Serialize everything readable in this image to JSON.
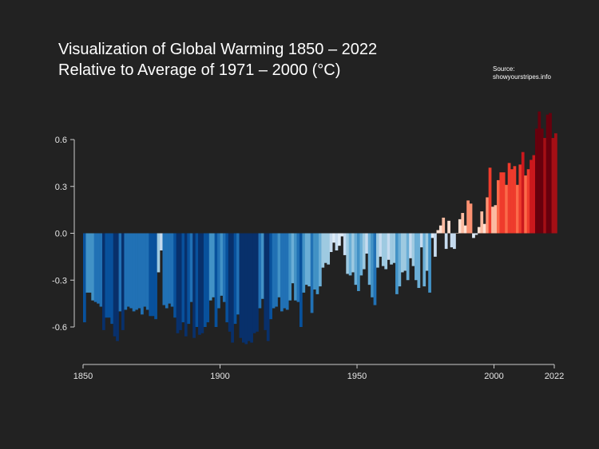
{
  "chart_data": {
    "type": "bar",
    "title": "Visualization of Global Warming 1850 – 2022",
    "subtitle": "Relative to Average of 1971 – 2000 (°C)",
    "source_label": "Source:",
    "source_value": "showyourstripes.info",
    "xlabel": "",
    "ylabel": "",
    "xlim": [
      1850,
      2022
    ],
    "ylim": [
      -0.6,
      0.6
    ],
    "x_ticks": [
      1850,
      1900,
      1950,
      2000,
      2022
    ],
    "x_tick_labels": [
      "1850",
      "1900",
      "1950",
      "2000",
      "2022"
    ],
    "y_ticks": [
      0.6,
      0.3,
      0.0,
      -0.3,
      -0.6
    ],
    "y_tick_labels": [
      "0.6",
      "0.3",
      "0.0",
      "-0.3",
      "-0.6"
    ],
    "grid": false,
    "legend": "none",
    "start_year": 1850,
    "values": [
      -0.57,
      -0.38,
      -0.38,
      -0.43,
      -0.44,
      -0.45,
      -0.47,
      -0.62,
      -0.54,
      -0.54,
      -0.58,
      -0.66,
      -0.69,
      -0.5,
      -0.62,
      -0.49,
      -0.47,
      -0.48,
      -0.5,
      -0.49,
      -0.48,
      -0.52,
      -0.47,
      -0.49,
      -0.53,
      -0.53,
      -0.55,
      -0.25,
      -0.11,
      -0.46,
      -0.48,
      -0.45,
      -0.47,
      -0.54,
      -0.64,
      -0.62,
      -0.57,
      -0.66,
      -0.58,
      -0.44,
      -0.67,
      -0.6,
      -0.65,
      -0.64,
      -0.6,
      -0.57,
      -0.43,
      -0.41,
      -0.6,
      -0.48,
      -0.4,
      -0.44,
      -0.57,
      -0.63,
      -0.7,
      -0.58,
      -0.52,
      -0.67,
      -0.7,
      -0.71,
      -0.69,
      -0.7,
      -0.64,
      -0.63,
      -0.48,
      -0.42,
      -0.62,
      -0.69,
      -0.55,
      -0.48,
      -0.47,
      -0.41,
      -0.5,
      -0.48,
      -0.49,
      -0.43,
      -0.32,
      -0.43,
      -0.44,
      -0.6,
      -0.38,
      -0.33,
      -0.34,
      -0.51,
      -0.36,
      -0.39,
      -0.34,
      -0.22,
      -0.19,
      -0.2,
      -0.12,
      -0.06,
      -0.11,
      -0.08,
      -0.02,
      -0.14,
      -0.26,
      -0.27,
      -0.25,
      -0.33,
      -0.37,
      -0.27,
      -0.23,
      -0.13,
      -0.33,
      -0.41,
      -0.46,
      -0.22,
      -0.15,
      -0.21,
      -0.23,
      -0.17,
      -0.2,
      -0.19,
      -0.39,
      -0.34,
      -0.25,
      -0.24,
      -0.3,
      -0.16,
      -0.21,
      -0.3,
      -0.35,
      -0.09,
      -0.34,
      -0.24,
      -0.38,
      -0.03,
      -0.15,
      0.02,
      0.05,
      0.1,
      -0.1,
      0.08,
      -0.09,
      -0.1,
      0.0,
      0.09,
      0.13,
      0.05,
      0.21,
      0.19,
      -0.03,
      -0.01,
      0.04,
      0.14,
      0.06,
      0.23,
      0.42,
      0.17,
      0.18,
      0.34,
      0.39,
      0.39,
      0.31,
      0.45,
      0.41,
      0.43,
      0.31,
      0.44,
      0.52,
      0.37,
      0.41,
      0.47,
      0.5,
      0.67,
      0.78,
      0.67,
      0.61,
      0.76,
      0.77,
      0.61,
      0.64
    ],
    "color_scale": {
      "negative": [
        "#08306b",
        "#08519c",
        "#2171b5",
        "#4292c6",
        "#6baed6",
        "#9ecae1",
        "#c6dbef",
        "#deebf7"
      ],
      "positive": [
        "#fee0d2",
        "#fcbba1",
        "#fc9272",
        "#fb6a4a",
        "#ef3b2c",
        "#cb181d",
        "#a50f15",
        "#67000d"
      ]
    }
  },
  "colors": {
    "background": "#222222",
    "text": "#ffffff",
    "axis": "#cccccc"
  }
}
